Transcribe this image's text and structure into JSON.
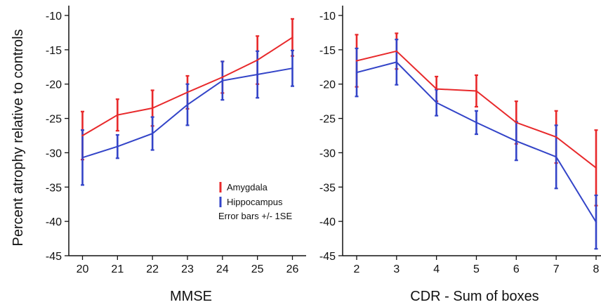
{
  "colors": {
    "amygdala": "#e8292b",
    "hippocampus": "#3344c8",
    "axis": "#111111"
  },
  "chart_data": [
    {
      "type": "line",
      "title": "",
      "xlabel": "MMSE",
      "ylabel": "Percent atrophy relative to controls",
      "x": [
        20,
        21,
        22,
        23,
        24,
        25,
        26
      ],
      "x_tick_labels": [
        "20",
        "21",
        "22",
        "23",
        "24",
        "25",
        "26"
      ],
      "y_tick_labels": [
        "-10",
        "-15",
        "-20",
        "-25",
        "-30",
        "-35",
        "-40",
        "-45"
      ],
      "y_ticks": [
        -10,
        -15,
        -20,
        -25,
        -30,
        -35,
        -40,
        -45
      ],
      "ylim": [
        -45,
        -8
      ],
      "xlim": [
        19.6,
        26.4
      ],
      "grid": false,
      "legend": {
        "placement": "center-right",
        "entries": [
          "Amygdala",
          "Hippocampus"
        ],
        "note": "Error bars +/- 1SE"
      },
      "series": [
        {
          "name": "Amygdala",
          "color_key": "amygdala",
          "values": [
            -27.5,
            -24.5,
            -23.5,
            -21.2,
            -19.0,
            -16.5,
            -13.2
          ],
          "error": [
            3.5,
            2.3,
            2.6,
            2.4,
            2.3,
            3.5,
            2.7
          ]
        },
        {
          "name": "Hippocampus",
          "color_key": "hippocampus",
          "values": [
            -30.7,
            -29.1,
            -27.2,
            -23.0,
            -19.5,
            -18.6,
            -17.7
          ],
          "error": [
            4.0,
            1.7,
            2.4,
            3.0,
            2.8,
            3.4,
            2.6
          ]
        }
      ]
    },
    {
      "type": "line",
      "title": "",
      "xlabel": "CDR - Sum of boxes",
      "ylabel": "",
      "x": [
        2,
        3,
        4,
        5,
        6,
        7,
        8
      ],
      "x_tick_labels": [
        "2",
        "3",
        "4",
        "5",
        "6",
        "7",
        "8"
      ],
      "y_tick_labels": [
        "-10",
        "-15",
        "-20",
        "-25",
        "-30",
        "-35",
        "-40",
        "-45"
      ],
      "y_ticks": [
        -10,
        -15,
        -20,
        -25,
        -30,
        -35,
        -40,
        -45
      ],
      "ylim": [
        -45,
        -8
      ],
      "xlim": [
        1.6,
        8.4
      ],
      "grid": false,
      "series": [
        {
          "name": "Amygdala",
          "color_key": "amygdala",
          "values": [
            -16.6,
            -15.2,
            -20.7,
            -21.0,
            -25.6,
            -27.7,
            -32.2
          ],
          "error": [
            3.8,
            2.6,
            1.8,
            2.3,
            3.1,
            3.8,
            5.5
          ]
        },
        {
          "name": "Hippocampus",
          "color_key": "hippocampus",
          "values": [
            -18.3,
            -16.8,
            -22.7,
            -25.6,
            -28.3,
            -30.6,
            -40.1
          ],
          "error": [
            3.5,
            3.3,
            1.9,
            1.7,
            2.8,
            4.6,
            3.9
          ]
        }
      ]
    }
  ]
}
